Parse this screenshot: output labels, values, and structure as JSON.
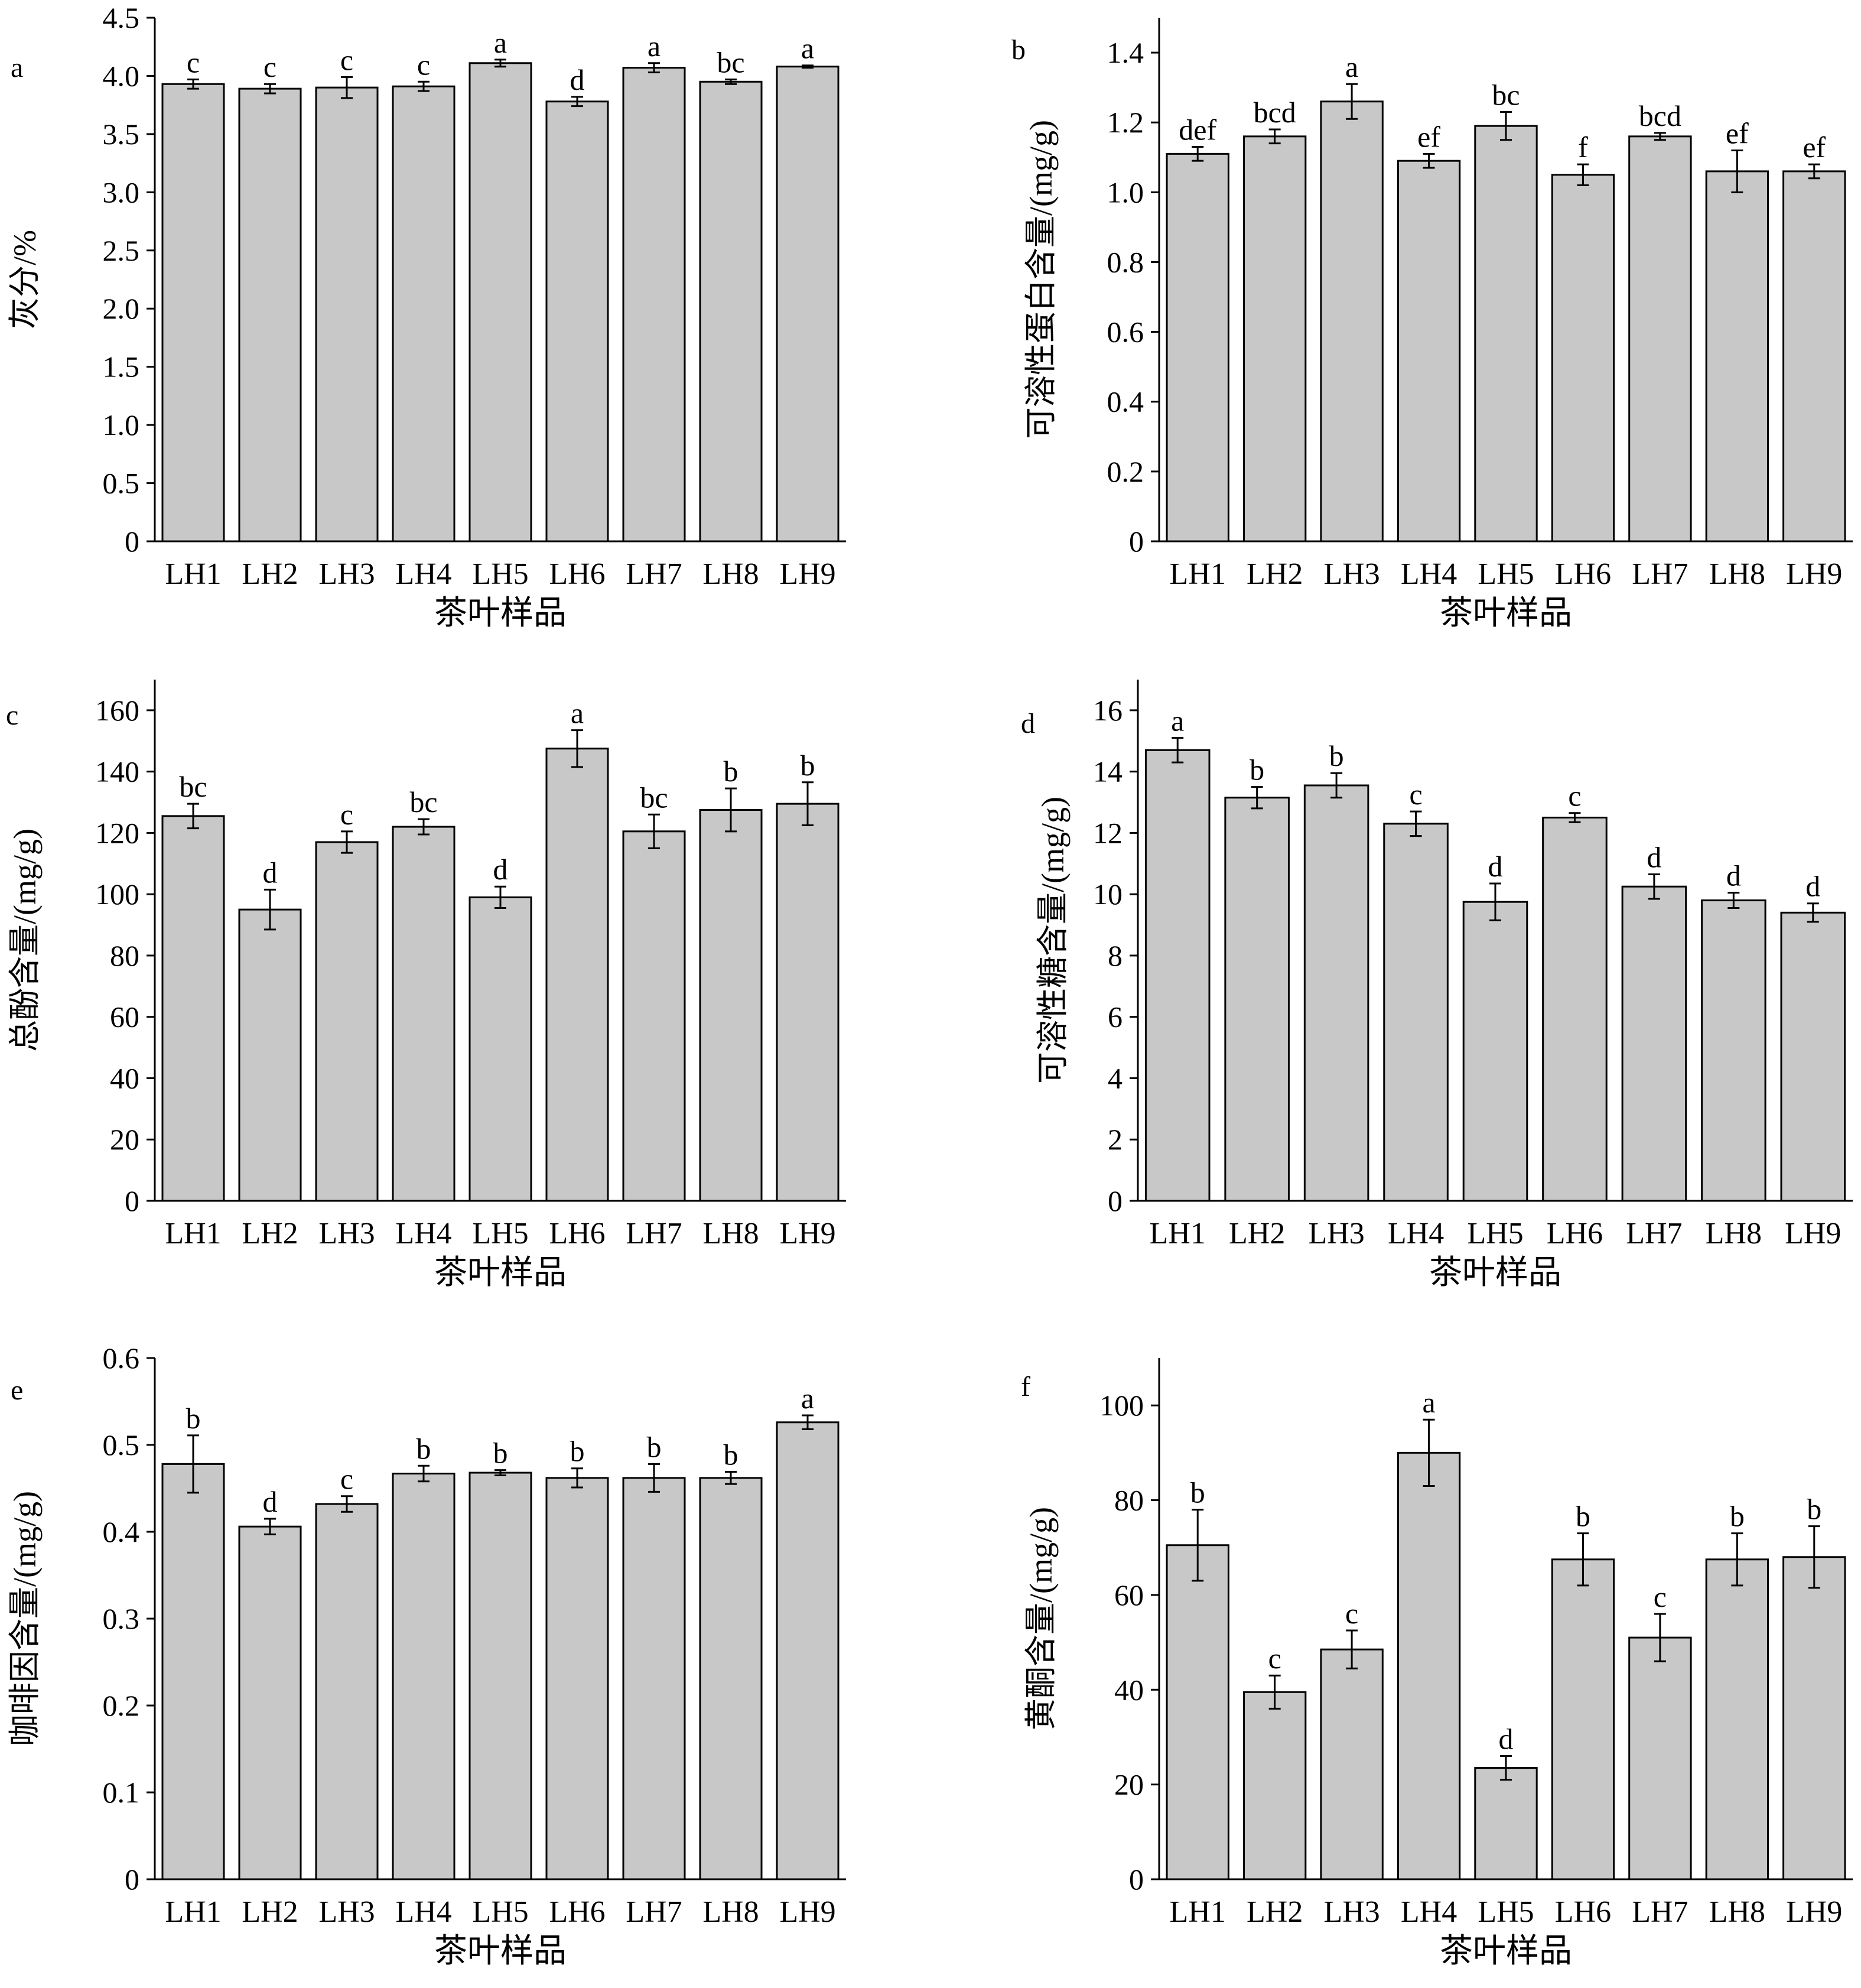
{
  "panels_meta": {
    "colors": {
      "bar_fill": "#c8c8c8",
      "bar_stroke": "#000000",
      "axis": "#000000"
    }
  },
  "chart_data": [
    {
      "panel_label": "a",
      "type": "bar",
      "categories": [
        "LH1",
        "LH2",
        "LH3",
        "LH4",
        "LH5",
        "LH6",
        "LH7",
        "LH8",
        "LH9"
      ],
      "values": [
        3.93,
        3.89,
        3.9,
        3.91,
        4.11,
        3.78,
        4.07,
        3.95,
        4.08
      ],
      "errors": [
        0.04,
        0.04,
        0.09,
        0.04,
        0.03,
        0.04,
        0.04,
        0.02,
        0.01
      ],
      "letters": [
        "c",
        "c",
        "c",
        "c",
        "a",
        "d",
        "a",
        "bc",
        "a"
      ],
      "xlabel": "茶叶样品",
      "ylabel": "灰分/%",
      "ylim": [
        0,
        4.5
      ],
      "yticks": [
        0,
        0.5,
        1.0,
        1.5,
        2.0,
        2.5,
        3.0,
        3.5,
        4.0,
        4.5
      ],
      "ytick_labels": [
        "0",
        "0.5",
        "1.0",
        "1.5",
        "2.0",
        "2.5",
        "3.0",
        "3.5",
        "4.0",
        "4.5"
      ],
      "grid": false
    },
    {
      "panel_label": "b",
      "type": "bar",
      "categories": [
        "LH1",
        "LH2",
        "LH3",
        "LH4",
        "LH5",
        "LH6",
        "LH7",
        "LH8",
        "LH9"
      ],
      "values": [
        1.11,
        1.16,
        1.26,
        1.09,
        1.19,
        1.05,
        1.16,
        1.06,
        1.06
      ],
      "errors": [
        0.02,
        0.02,
        0.05,
        0.02,
        0.04,
        0.03,
        0.01,
        0.06,
        0.02
      ],
      "letters": [
        "def",
        "bcd",
        "a",
        "ef",
        "bc",
        "f",
        "bcd",
        "ef",
        "ef"
      ],
      "xlabel": "茶叶样品",
      "ylabel": "可溶性蛋白含量/(mg/g)",
      "ylim": [
        0,
        1.5
      ],
      "yticks": [
        0,
        0.2,
        0.4,
        0.6,
        0.8,
        1.0,
        1.2,
        1.4
      ],
      "ytick_labels": [
        "0",
        "0.2",
        "0.4",
        "0.6",
        "0.8",
        "1.0",
        "1.2",
        "1.4"
      ],
      "grid": false
    },
    {
      "panel_label": "c",
      "type": "bar",
      "categories": [
        "LH1",
        "LH2",
        "LH3",
        "LH4",
        "LH5",
        "LH6",
        "LH7",
        "LH8",
        "LH9"
      ],
      "values": [
        125.5,
        95.0,
        117.0,
        122.0,
        99.0,
        147.5,
        120.5,
        127.5,
        129.5
      ],
      "errors": [
        4.0,
        6.5,
        3.5,
        2.5,
        3.5,
        6.0,
        5.5,
        7.0,
        7.0
      ],
      "letters": [
        "bc",
        "d",
        "c",
        "bc",
        "d",
        "a",
        "bc",
        "b",
        "b"
      ],
      "xlabel": "茶叶样品",
      "ylabel": "总酚含量/(mg/g)",
      "ylim": [
        0,
        170
      ],
      "yticks": [
        0,
        20,
        40,
        60,
        80,
        100,
        120,
        140,
        160
      ],
      "ytick_labels": [
        "0",
        "20",
        "40",
        "60",
        "80",
        "100",
        "120",
        "140",
        "160"
      ],
      "grid": false
    },
    {
      "panel_label": "d",
      "type": "bar",
      "categories": [
        "LH1",
        "LH2",
        "LH3",
        "LH4",
        "LH5",
        "LH6",
        "LH7",
        "LH8",
        "LH9"
      ],
      "values": [
        14.7,
        13.15,
        13.55,
        12.3,
        9.75,
        12.5,
        10.25,
        9.8,
        9.4
      ],
      "errors": [
        0.4,
        0.35,
        0.4,
        0.4,
        0.6,
        0.15,
        0.4,
        0.25,
        0.3
      ],
      "letters": [
        "a",
        "b",
        "b",
        "c",
        "d",
        "c",
        "d",
        "d",
        "d"
      ],
      "xlabel": "茶叶样品",
      "ylabel": "可溶性糖含量/(mg/g)",
      "ylim": [
        0,
        17
      ],
      "yticks": [
        0,
        2,
        4,
        6,
        8,
        10,
        12,
        14,
        16
      ],
      "ytick_labels": [
        "0",
        "2",
        "4",
        "6",
        "8",
        "10",
        "12",
        "14",
        "16"
      ],
      "grid": false
    },
    {
      "panel_label": "e",
      "type": "bar",
      "categories": [
        "LH1",
        "LH2",
        "LH3",
        "LH4",
        "LH5",
        "LH6",
        "LH7",
        "LH8",
        "LH9"
      ],
      "values": [
        0.478,
        0.406,
        0.432,
        0.467,
        0.468,
        0.462,
        0.462,
        0.462,
        0.526
      ],
      "errors": [
        0.033,
        0.009,
        0.009,
        0.009,
        0.003,
        0.011,
        0.016,
        0.007,
        0.008
      ],
      "letters": [
        "b",
        "d",
        "c",
        "b",
        "b",
        "b",
        "b",
        "b",
        "a"
      ],
      "xlabel": "茶叶样品",
      "ylabel": "咖啡因含量/(mg/g)",
      "ylim": [
        0,
        0.6
      ],
      "yticks": [
        0,
        0.1,
        0.2,
        0.3,
        0.4,
        0.5,
        0.6
      ],
      "ytick_labels": [
        "0",
        "0.1",
        "0.2",
        "0.3",
        "0.4",
        "0.5",
        "0.6"
      ],
      "grid": false
    },
    {
      "panel_label": "f",
      "type": "bar",
      "categories": [
        "LH1",
        "LH2",
        "LH3",
        "LH4",
        "LH5",
        "LH6",
        "LH7",
        "LH8",
        "LH9"
      ],
      "values": [
        70.5,
        39.5,
        48.5,
        90.0,
        23.5,
        67.5,
        51.0,
        67.5,
        68.0
      ],
      "errors": [
        7.5,
        3.5,
        4.0,
        7.0,
        2.5,
        5.5,
        5.0,
        5.5,
        6.5
      ],
      "letters": [
        "b",
        "c",
        "c",
        "a",
        "d",
        "b",
        "c",
        "b",
        "b"
      ],
      "xlabel": "茶叶样品",
      "ylabel": "黄酮含量/(mg/g)",
      "ylim": [
        0,
        110
      ],
      "yticks": [
        0,
        20,
        40,
        60,
        80,
        100
      ],
      "ytick_labels": [
        "0",
        "20",
        "40",
        "60",
        "80",
        "100"
      ],
      "grid": false
    }
  ]
}
